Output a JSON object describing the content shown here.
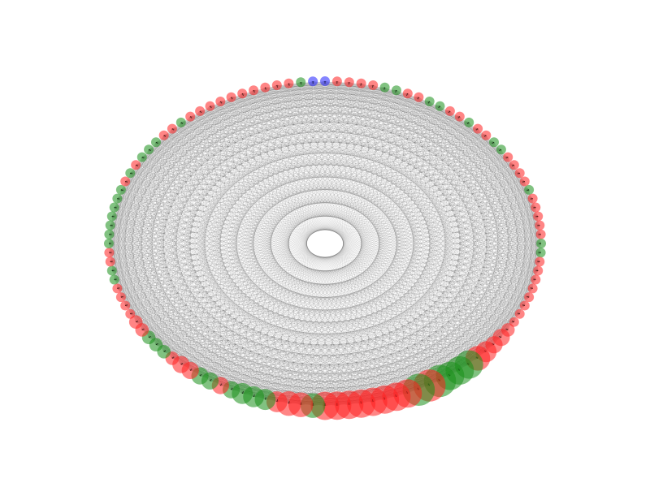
{
  "graph": {
    "layout": "circular",
    "node_count": 112,
    "colors": {
      "red": "#ff2020",
      "green": "#1a8f1a",
      "blue": "#2020ff",
      "edge": "#000000",
      "background": "#ffffff"
    },
    "node_colors": [
      "blue",
      "red",
      "red",
      "red",
      "red",
      "green",
      "green",
      "red",
      "red",
      "green",
      "green",
      "red",
      "red",
      "green",
      "red",
      "red",
      "green",
      "green",
      "red",
      "red",
      "red",
      "red",
      "green",
      "red",
      "red",
      "red",
      "red",
      "red",
      "green",
      "green",
      "red",
      "red",
      "red",
      "red",
      "red",
      "red",
      "red",
      "red",
      "red",
      "red",
      "red",
      "red",
      "red",
      "green",
      "green",
      "green",
      "green",
      "red",
      "green",
      "red",
      "red",
      "red",
      "red",
      "red",
      "red",
      "red",
      "red",
      "green",
      "red",
      "red",
      "red",
      "green",
      "green",
      "green",
      "green",
      "red",
      "green",
      "green",
      "red",
      "red",
      "red",
      "green",
      "green",
      "green",
      "red",
      "red",
      "red",
      "red",
      "red",
      "red",
      "green",
      "green",
      "red",
      "red",
      "green",
      "green",
      "green",
      "green",
      "green",
      "green",
      "green",
      "red",
      "green",
      "red",
      "green",
      "green",
      "green",
      "red",
      "red",
      "green",
      "red",
      "red",
      "red",
      "red",
      "red",
      "red",
      "red",
      "red",
      "red",
      "red",
      "green",
      "blue"
    ],
    "node_weights": [
      1,
      1,
      1,
      1,
      1,
      1,
      1,
      1,
      1,
      1,
      1,
      1,
      1,
      1,
      1,
      1,
      1,
      1,
      1,
      1,
      1,
      1,
      1,
      1,
      1,
      1,
      1,
      1,
      1,
      1,
      1,
      1,
      1,
      1,
      1,
      1,
      1,
      1,
      2,
      3,
      3,
      4,
      5,
      6,
      6,
      6,
      7,
      7,
      7,
      6,
      6,
      6,
      6,
      6,
      6,
      6,
      6,
      5,
      5,
      5,
      4,
      4,
      4,
      4,
      3,
      3,
      3,
      3,
      3,
      3,
      2,
      2,
      2,
      2,
      2,
      2,
      1,
      1,
      1,
      1,
      1,
      1,
      1,
      1,
      1,
      1,
      1,
      1,
      1,
      1,
      1,
      1,
      1,
      1,
      1,
      1,
      1,
      1,
      1,
      1,
      1,
      1,
      1,
      1,
      1,
      1,
      1,
      1,
      1,
      1,
      1,
      1
    ],
    "edge_density": "dense"
  }
}
